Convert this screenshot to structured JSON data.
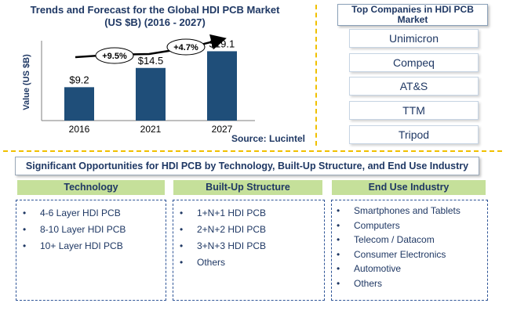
{
  "chart_data": {
    "type": "bar",
    "title": "Trends and Forecast for the Global HDI PCB Market",
    "subtitle": "(US $B) (2016  - 2027)",
    "ylabel": "Value (US $B)",
    "xlabel": "",
    "categories": [
      "2016",
      "2021",
      "2027"
    ],
    "values": [
      9.2,
      14.5,
      19.1
    ],
    "data_labels": [
      "$9.2",
      "$14.5",
      "$19.1"
    ],
    "ylim": [
      0,
      22
    ],
    "grid": false,
    "bar_color": "#1f4e79",
    "growth_annotations": [
      "+9.5%",
      "+4.7%"
    ],
    "source": "Source: Lucintel"
  },
  "companies": {
    "title": "Top Companies in HDI PCB Market",
    "items": [
      "Unimicron",
      "Compeq",
      "AT&S",
      "TTM",
      "Tripod"
    ]
  },
  "opportunities": {
    "title": "Significant Opportunities for HDI PCB by Technology, Built-Up Structure,  and End Use Industry",
    "columns": [
      {
        "header": "Technology",
        "items": [
          "4-6 Layer HDI PCB",
          "8-10 Layer HDI PCB",
          "10+ Layer HDI PCB"
        ]
      },
      {
        "header": "Built-Up Structure",
        "items": [
          "1+N+1 HDI PCB",
          "2+N+2 HDI PCB",
          "3+N+3 HDI PCB",
          "Others"
        ]
      },
      {
        "header": "End Use Industry",
        "items": [
          "Smartphones and Tablets",
          "Computers",
          "Telecom / Datacom",
          "Consumer Electronics",
          "Automotive",
          "Others"
        ]
      }
    ]
  },
  "colors": {
    "title_text": "#1f3864",
    "header_green": "#c5e09a",
    "separator": "#f0c000"
  }
}
